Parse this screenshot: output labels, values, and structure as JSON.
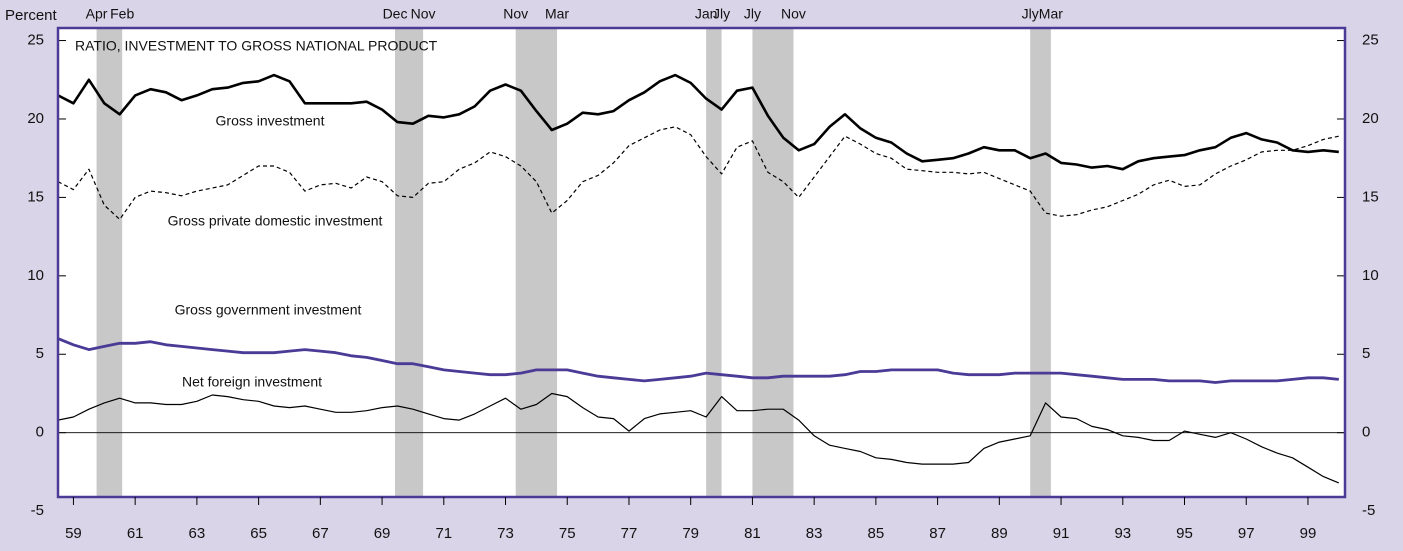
{
  "chart_data": {
    "type": "line",
    "title": "RATIO, INVESTMENT TO GROSS NATIONAL PRODUCT",
    "ylabel": "Percent",
    "x": [
      1959,
      1959.5,
      1960,
      1960.5,
      1961,
      1961.5,
      1962,
      1962.5,
      1963,
      1963.5,
      1964,
      1964.5,
      1965,
      1965.5,
      1966,
      1966.5,
      1967,
      1967.5,
      1968,
      1968.5,
      1969,
      1969.5,
      1970,
      1970.5,
      1971,
      1971.5,
      1972,
      1972.5,
      1973,
      1973.5,
      1974,
      1974.5,
      1975,
      1975.5,
      1976,
      1976.5,
      1977,
      1977.5,
      1978,
      1978.5,
      1979,
      1979.5,
      1980,
      1980.5,
      1981,
      1981.5,
      1982,
      1982.5,
      1983,
      1983.5,
      1984,
      1984.5,
      1985,
      1985.5,
      1986,
      1986.5,
      1987,
      1987.5,
      1988,
      1988.5,
      1989,
      1989.5,
      1990,
      1990.5,
      1991,
      1991.5,
      1992,
      1992.5,
      1993,
      1993.5,
      1994,
      1994.5,
      1995,
      1995.5,
      1996,
      1996.5,
      1997,
      1997.5,
      1998,
      1998.5,
      1999,
      1999.5,
      2000,
      2000.5
    ],
    "series": [
      {
        "name": "Gross investment",
        "color": "#000000",
        "line_width": 2.6,
        "line_style": "solid",
        "values": [
          21.5,
          21.0,
          22.5,
          21.0,
          20.3,
          21.5,
          21.9,
          21.7,
          21.2,
          21.5,
          21.9,
          22.0,
          22.3,
          22.4,
          22.8,
          22.4,
          21.0,
          21.0,
          21.0,
          21.0,
          21.1,
          20.6,
          19.8,
          19.7,
          20.2,
          20.1,
          20.3,
          20.8,
          21.8,
          22.2,
          21.8,
          20.5,
          19.3,
          19.7,
          20.4,
          20.3,
          20.5,
          21.2,
          21.7,
          22.4,
          22.8,
          22.3,
          21.3,
          20.6,
          21.8,
          22.0,
          20.2,
          18.8,
          18.0,
          18.4,
          19.5,
          20.3,
          19.4,
          18.8,
          18.5,
          17.8,
          17.3,
          17.4,
          17.5,
          17.8,
          18.2,
          18.0,
          18.0,
          17.5,
          17.8,
          17.2,
          17.1,
          16.9,
          17.0,
          16.8,
          17.3,
          17.5,
          17.6,
          17.7,
          18.0,
          18.2,
          18.8,
          19.1,
          18.7,
          18.5,
          18.0,
          17.9,
          18.0,
          17.9
        ]
      },
      {
        "name": "Gross private domestic investment",
        "color": "#000000",
        "line_width": 1.2,
        "line_style": "dashed",
        "values": [
          16.0,
          15.5,
          16.8,
          14.5,
          13.6,
          15.0,
          15.4,
          15.3,
          15.1,
          15.4,
          15.6,
          15.8,
          16.4,
          17.0,
          17.0,
          16.6,
          15.4,
          15.8,
          15.9,
          15.6,
          16.3,
          16.0,
          15.1,
          15.0,
          15.9,
          16.0,
          16.8,
          17.2,
          17.9,
          17.6,
          17.0,
          16.0,
          14.0,
          14.8,
          16.0,
          16.4,
          17.2,
          18.3,
          18.8,
          19.3,
          19.5,
          19.0,
          17.6,
          16.5,
          18.2,
          18.6,
          16.6,
          16.0,
          15.0,
          16.3,
          17.6,
          18.9,
          18.4,
          17.8,
          17.5,
          16.8,
          16.7,
          16.6,
          16.6,
          16.5,
          16.6,
          16.2,
          15.8,
          15.4,
          14.0,
          13.8,
          13.9,
          14.2,
          14.4,
          14.8,
          15.2,
          15.8,
          16.1,
          15.7,
          15.8,
          16.5,
          17.0,
          17.4,
          17.9,
          18.0,
          18.0,
          18.3,
          18.7,
          18.9
        ]
      },
      {
        "name": "Gross government investment",
        "color": "#4b3a96",
        "line_width": 2.8,
        "line_style": "solid",
        "values": [
          6.0,
          5.6,
          5.3,
          5.5,
          5.7,
          5.7,
          5.8,
          5.6,
          5.5,
          5.4,
          5.3,
          5.2,
          5.1,
          5.1,
          5.1,
          5.2,
          5.3,
          5.2,
          5.1,
          4.9,
          4.8,
          4.6,
          4.4,
          4.4,
          4.2,
          4.0,
          3.9,
          3.8,
          3.7,
          3.7,
          3.8,
          4.0,
          4.0,
          4.0,
          3.8,
          3.6,
          3.5,
          3.4,
          3.3,
          3.4,
          3.5,
          3.6,
          3.8,
          3.7,
          3.6,
          3.5,
          3.5,
          3.6,
          3.6,
          3.6,
          3.6,
          3.7,
          3.9,
          3.9,
          4.0,
          4.0,
          4.0,
          4.0,
          3.8,
          3.7,
          3.7,
          3.7,
          3.8,
          3.8,
          3.8,
          3.8,
          3.7,
          3.6,
          3.5,
          3.4,
          3.4,
          3.4,
          3.3,
          3.3,
          3.3,
          3.2,
          3.3,
          3.3,
          3.3,
          3.3,
          3.4,
          3.5,
          3.5,
          3.4
        ]
      },
      {
        "name": "Net foreign investment",
        "color": "#000000",
        "line_width": 1.2,
        "line_style": "solid",
        "values": [
          0.8,
          1.0,
          1.5,
          1.9,
          2.2,
          1.9,
          1.9,
          1.8,
          1.8,
          2.0,
          2.4,
          2.3,
          2.1,
          2.0,
          1.7,
          1.6,
          1.7,
          1.5,
          1.3,
          1.3,
          1.4,
          1.6,
          1.7,
          1.5,
          1.2,
          0.9,
          0.8,
          1.2,
          1.7,
          2.2,
          1.5,
          1.8,
          2.5,
          2.3,
          1.6,
          1.0,
          0.9,
          0.1,
          0.9,
          1.2,
          1.3,
          1.4,
          1.0,
          2.3,
          1.4,
          1.4,
          1.5,
          1.5,
          0.8,
          -0.2,
          -0.8,
          -1.0,
          -1.2,
          -1.6,
          -1.7,
          -1.9,
          -2.0,
          -2.0,
          -2.0,
          -1.9,
          -1.0,
          -0.6,
          -0.4,
          -0.2,
          1.9,
          1.0,
          0.9,
          0.4,
          0.2,
          -0.2,
          -0.3,
          -0.5,
          -0.5,
          0.1,
          -0.1,
          -0.3,
          0,
          -0.4,
          -0.9,
          -1.3,
          -1.6,
          -2.2,
          -2.8,
          -3.2
        ]
      }
    ],
    "recessions": [
      {
        "start": 1960.25,
        "end": 1961.08,
        "start_label": "Apr",
        "end_label": "Feb"
      },
      {
        "start": 1969.92,
        "end": 1970.83,
        "start_label": "Dec",
        "end_label": "Nov"
      },
      {
        "start": 1973.83,
        "end": 1975.17,
        "start_label": "Nov",
        "end_label": "Mar"
      },
      {
        "start": 1980.0,
        "end": 1980.5,
        "start_label": "Jan",
        "end_label": "Jly"
      },
      {
        "start": 1981.5,
        "end": 1982.83,
        "start_label": "Jly",
        "end_label": "Nov"
      },
      {
        "start": 1990.5,
        "end": 1991.17,
        "start_label": "Jly",
        "end_label": "Mar"
      }
    ],
    "recession_color": "#c8c8c8",
    "xlim": [
      1959,
      2000.7
    ],
    "xticks": [
      {
        "value": 1959.5,
        "label": "59"
      },
      {
        "value": 1961.5,
        "label": "61"
      },
      {
        "value": 1963.5,
        "label": "63"
      },
      {
        "value": 1965.5,
        "label": "65"
      },
      {
        "value": 1967.5,
        "label": "67"
      },
      {
        "value": 1969.5,
        "label": "69"
      },
      {
        "value": 1971.5,
        "label": "71"
      },
      {
        "value": 1973.5,
        "label": "73"
      },
      {
        "value": 1975.5,
        "label": "75"
      },
      {
        "value": 1977.5,
        "label": "77"
      },
      {
        "value": 1979.5,
        "label": "79"
      },
      {
        "value": 1981.5,
        "label": "81"
      },
      {
        "value": 1983.5,
        "label": "83"
      },
      {
        "value": 1985.5,
        "label": "85"
      },
      {
        "value": 1987.5,
        "label": "87"
      },
      {
        "value": 1989.5,
        "label": "89"
      },
      {
        "value": 1991.5,
        "label": "91"
      },
      {
        "value": 1993.5,
        "label": "93"
      },
      {
        "value": 1995.5,
        "label": "95"
      },
      {
        "value": 1997.5,
        "label": "97"
      },
      {
        "value": 1999.5,
        "label": "99"
      }
    ],
    "ylim": [
      -4.1,
      25.8
    ],
    "yticks": [
      -5,
      0,
      5,
      10,
      15,
      20,
      25
    ],
    "y2lim": [
      -4.1,
      25.8
    ],
    "y2ticks": [
      -5,
      0,
      5,
      10,
      15,
      20,
      25
    ],
    "grid": false
  }
}
